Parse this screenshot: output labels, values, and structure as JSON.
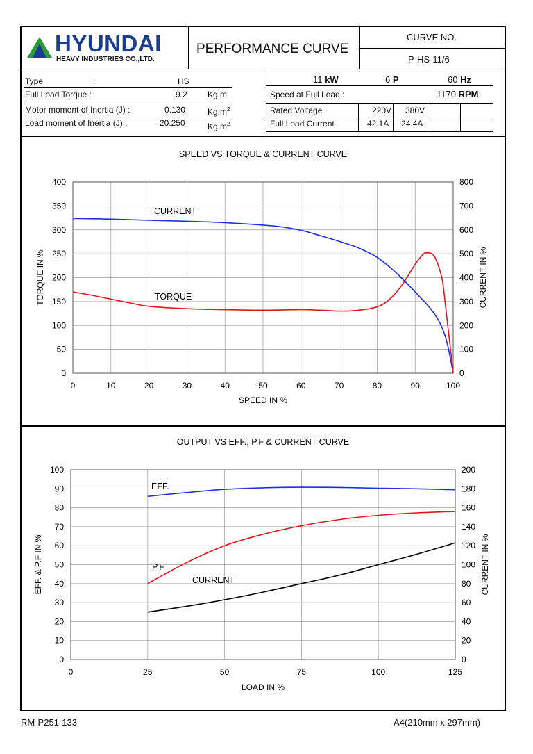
{
  "header": {
    "logo_brand": "HYUNDAI",
    "logo_sub": "HEAVY INDUSTRIES CO.,LTD.",
    "doc_title": "PERFORMANCE CURVE",
    "curve_no_label": "CURVE NO.",
    "curve_no_value": "P-HS-11/6"
  },
  "specs_left": [
    {
      "label": "Type",
      "sep": ":",
      "value": "HS",
      "unit": ""
    },
    {
      "label": "Full Load Torque :",
      "sep": "",
      "value": "9.2",
      "unit": "Kg.m"
    },
    {
      "label": "Motor moment of Inertia (J) :",
      "sep": "",
      "value": "0.130",
      "unit": "Kg.m",
      "unit_sup": "2"
    },
    {
      "label": "Load moment of Inertia (J) :",
      "sep": "",
      "value": "20.250",
      "unit": "Kg.m",
      "unit_sup": "2"
    }
  ],
  "specs_right": {
    "power": "11",
    "power_unit": "kW",
    "poles": "6",
    "poles_unit": "P",
    "freq": "60",
    "freq_unit": "Hz",
    "speed_label": "Speed at Full Load :",
    "speed_value": "1170",
    "speed_unit": "RPM",
    "voltage_label": "Rated Voltage",
    "voltages": [
      "220V",
      "380V"
    ],
    "current_label": "Full Load Current",
    "currents": [
      "42.1A",
      "24.4A"
    ]
  },
  "footer": {
    "left": "RM-P251-133",
    "right": "A4(210mm x 297mm)"
  },
  "colors": {
    "blue": "#1f2ee8",
    "red": "#e8141b",
    "black": "#000000",
    "logo_green": "#2e9b3a",
    "logo_blue": "#1b3d8f"
  },
  "chart_data": [
    {
      "type": "line",
      "title": "SPEED VS TORQUE & CURRENT CURVE",
      "xlabel": "SPEED IN %",
      "ylabel": "TORQUE IN %",
      "y2label": "CURRENT IN %",
      "xlim": [
        0,
        100
      ],
      "ylim": [
        0,
        400
      ],
      "y2lim": [
        0,
        800
      ],
      "xticks": [
        "0",
        "10",
        "20",
        "30",
        "40",
        "50",
        "60",
        "70",
        "80",
        "90",
        "100"
      ],
      "yticks": [
        "0",
        "50",
        "100",
        "150",
        "200",
        "250",
        "300",
        "350",
        "400"
      ],
      "y2ticks": [
        "0",
        "100",
        "200",
        "300",
        "400",
        "500",
        "600",
        "700",
        "800"
      ],
      "grid": true,
      "series": [
        {
          "name": "CURRENT",
          "axis": "right",
          "color": "#1f2ee8",
          "x": [
            0,
            10,
            20,
            30,
            40,
            50,
            55,
            60,
            65,
            70,
            75,
            80,
            85,
            90,
            95,
            98,
            100
          ],
          "y": [
            648,
            645,
            640,
            636,
            630,
            620,
            612,
            598,
            576,
            552,
            525,
            485,
            420,
            340,
            250,
            150,
            0
          ]
        },
        {
          "name": "TORQUE",
          "axis": "left",
          "color": "#e8141b",
          "x": [
            0,
            5,
            10,
            15,
            20,
            30,
            40,
            50,
            60,
            65,
            70,
            74,
            78,
            81,
            84,
            87,
            90,
            92,
            93,
            95,
            97,
            98,
            100
          ],
          "y": [
            170,
            163,
            155,
            147,
            140,
            135,
            133,
            132,
            133,
            132,
            130,
            131,
            135,
            142,
            160,
            190,
            228,
            248,
            252,
            245,
            200,
            140,
            0
          ]
        }
      ],
      "annotations": [
        "CURRENT",
        "TORQUE"
      ]
    },
    {
      "type": "line",
      "title": "OUTPUT VS EFF., P.F & CURRENT CURVE",
      "xlabel": "LOAD IN %",
      "ylabel": "EFF. & P.F IN %",
      "y2label": "CURRENT IN %",
      "xlim": [
        0,
        125
      ],
      "ylim": [
        0,
        100
      ],
      "y2lim": [
        0,
        200
      ],
      "xticks": [
        "0",
        "25",
        "50",
        "75",
        "100",
        "125"
      ],
      "yticks": [
        "0",
        "10",
        "20",
        "30",
        "40",
        "50",
        "60",
        "70",
        "80",
        "90",
        "100"
      ],
      "y2ticks": [
        "0",
        "20",
        "40",
        "60",
        "80",
        "100",
        "120",
        "140",
        "160",
        "180",
        "200"
      ],
      "grid": true,
      "series": [
        {
          "name": "EFF.",
          "axis": "left",
          "color": "#1f2ee8",
          "x": [
            25,
            37.5,
            50,
            62.5,
            75,
            87.5,
            100,
            112.5,
            125
          ],
          "y": [
            86,
            88,
            89.7,
            90.5,
            90.8,
            90.7,
            90.3,
            90,
            89.5
          ]
        },
        {
          "name": "P.F",
          "axis": "left",
          "color": "#e8141b",
          "x": [
            25,
            37.5,
            50,
            62.5,
            75,
            87.5,
            100,
            112.5,
            125
          ],
          "y": [
            40,
            51,
            60,
            66,
            70.5,
            73.8,
            76,
            77.3,
            78
          ]
        },
        {
          "name": "CURRENT",
          "axis": "right",
          "color": "#000000",
          "x": [
            25,
            37.5,
            50,
            62.5,
            75,
            87.5,
            100,
            112.5,
            125
          ],
          "y": [
            50,
            56,
            63,
            71,
            80,
            89,
            100,
            111,
            123
          ]
        }
      ],
      "annotations": [
        "EFF.",
        "P.F",
        "CURRENT"
      ]
    }
  ]
}
